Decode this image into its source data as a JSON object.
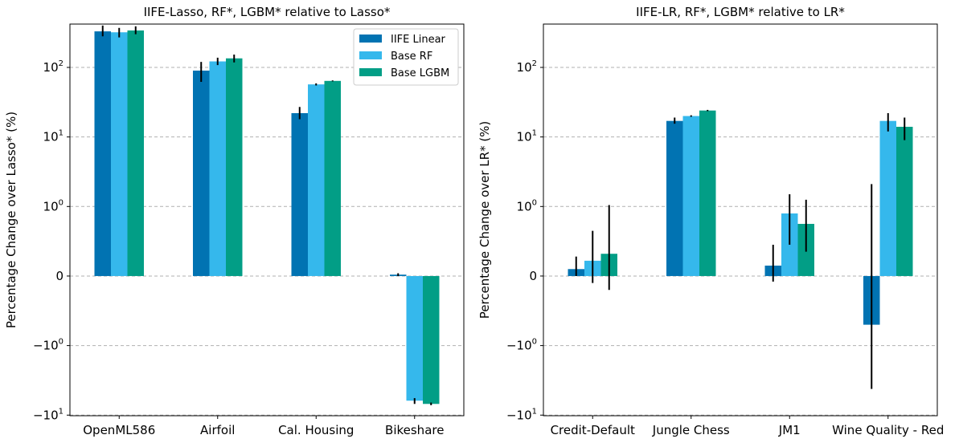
{
  "chart_data": [
    {
      "type": "bar",
      "title": "IIFE-Lasso, RF*, LGBM* relative to Lasso*",
      "ylabel": "Percentage Change over Lasso* (%)",
      "yscale": "symlog",
      "linthresh": 1,
      "ylim": [
        -10.2,
        420
      ],
      "yticks": [
        "10^2",
        "10^1",
        "10^0",
        "0",
        "-10^0",
        "-10^1"
      ],
      "categories": [
        "OpenML586",
        "Airfoil",
        "Cal. Housing",
        "Bikeshare"
      ],
      "series": [
        {
          "name": "IIFE Linear",
          "color": "#0173b2",
          "values": [
            330,
            90,
            22,
            0.02
          ],
          "errors": [
            [
              280,
              400
            ],
            [
              62,
              120
            ],
            [
              18,
              27
            ],
            [
              0.0,
              0.04
            ]
          ]
        },
        {
          "name": "Base RF",
          "color": "#35b8ec",
          "values": [
            320,
            122,
            57,
            -6.2
          ],
          "errors": [
            [
              270,
              370
            ],
            [
              108,
              138
            ],
            [
              55,
              59
            ],
            [
              -6.9,
              -5.7
            ]
          ]
        },
        {
          "name": "Base LGBM",
          "color": "#029e86",
          "values": [
            340,
            135,
            64,
            -6.9
          ],
          "errors": [
            [
              300,
              390
            ],
            [
              118,
              153
            ],
            [
              63,
              65
            ],
            [
              -7.2,
              -6.6
            ]
          ]
        }
      ],
      "legend": {
        "position": "top-right",
        "entries": [
          "IIFE Linear",
          "Base RF",
          "Base LGBM"
        ]
      }
    },
    {
      "type": "bar",
      "title": "IIFE-LR, RF*, LGBM* relative to LR*",
      "ylabel": "Percentage Change over LR* (%)",
      "yscale": "symlog",
      "linthresh": 1,
      "ylim": [
        -10.2,
        420
      ],
      "yticks": [
        "10^2",
        "10^1",
        "10^0",
        "0",
        "-10^0",
        "-10^1"
      ],
      "categories": [
        "Credit-Default",
        "Jungle Chess",
        "JM1",
        "Wine Quality - Red"
      ],
      "series": [
        {
          "name": "IIFE Linear",
          "color": "#0173b2",
          "values": [
            0.1,
            17,
            0.15,
            -0.7
          ],
          "errors": [
            [
              0.0,
              0.28
            ],
            [
              15.5,
              19
            ],
            [
              -0.08,
              0.45
            ],
            [
              -4.2,
              2.1
            ]
          ]
        },
        {
          "name": "Base RF",
          "color": "#35b8ec",
          "values": [
            0.22,
            20,
            0.9,
            17
          ],
          "errors": [
            [
              -0.1,
              0.65
            ],
            [
              19.5,
              20.5
            ],
            [
              0.45,
              1.5
            ],
            [
              12,
              22
            ]
          ]
        },
        {
          "name": "Base LGBM",
          "color": "#029e86",
          "values": [
            0.32,
            24,
            0.75,
            14
          ],
          "errors": [
            [
              -0.2,
              1.05
            ],
            [
              23.5,
              24.5
            ],
            [
              0.35,
              1.25
            ],
            [
              9,
              19
            ]
          ]
        }
      ]
    }
  ]
}
